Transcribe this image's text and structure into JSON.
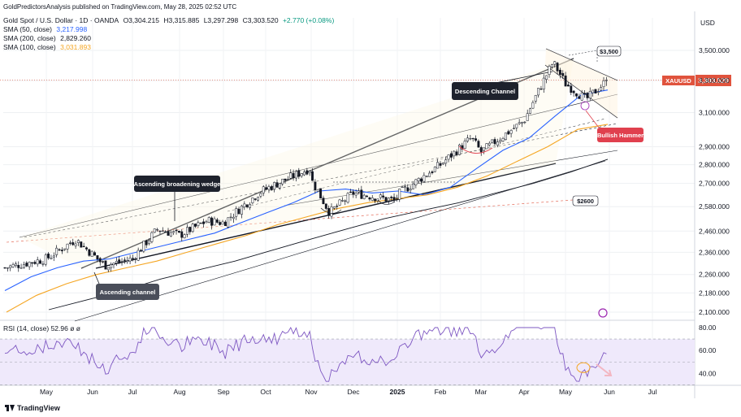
{
  "publisher": "GoldPredictorsAnalysis published on TradingView.com, May 28, 2025 02:52 UTC",
  "symbol": {
    "name": "Gold Spot / U.S. Dollar · 1D · OANDA",
    "open": "O3,304.215",
    "high": "H3,315.885",
    "low": "L3,297.298",
    "close": "C3,303.520",
    "change": "+2.770 (+0.08%)"
  },
  "indicators": [
    {
      "label": "SMA (50, close)",
      "value": "3,217.998",
      "color": "#2962ff"
    },
    {
      "label": "SMA (200, close)",
      "value": "2,829.260",
      "color": "#131722"
    },
    {
      "label": "SMA (100, close)",
      "value": "3,031.893",
      "color": "#f5a623"
    }
  ],
  "currency": "USD",
  "price_tag": {
    "symbol": "XAUUSD",
    "value": "3,303.520",
    "color": "#e0533d"
  },
  "rsi_label": "RSI (14, close) 52.96 ø ø",
  "annotations": {
    "descending_channel": "Descending Channel",
    "ascending_broadening_wedge": "Ascending broadening wedge",
    "ascending_channel": "Ascending channel",
    "bullish_hammer": "Bullish Hammer",
    "level_3500": "$3,500",
    "level_2600": "$2600"
  },
  "watermark": "TradingView",
  "chart_data": [
    {
      "type": "candlestick",
      "title": "Gold Spot / U.S. Dollar · 1D · OANDA",
      "x_labels": [
        "May",
        "Jun",
        "Jul",
        "Aug",
        "Sep",
        "Oct",
        "Nov",
        "Dec",
        "2025",
        "Feb",
        "Mar",
        "Apr",
        "May",
        "Jun",
        "Jul"
      ],
      "y_ticks": [
        3500,
        3300,
        3100,
        2900,
        2800,
        2700,
        2580,
        2460,
        2360,
        2260,
        2180,
        2100
      ],
      "y_tick_labels": [
        "3,500.000",
        "3,300.000",
        "3,100.000",
        "2,900.000",
        "2,800.000",
        "2,700.000",
        "2,580.000",
        "2,460.000",
        "2,360.000",
        "2,260.000",
        "2,180.000",
        "2,100.000"
      ],
      "ylim": [
        2080,
        3580
      ],
      "scale": "log",
      "last_price": 3303.52,
      "price_path": {
        "months": [
          "2024-04",
          "2024-05",
          "2024-05-20",
          "2024-06",
          "2024-06-10",
          "2024-07",
          "2024-07-17",
          "2024-08",
          "2024-08-20",
          "2024-09",
          "2024-09-26",
          "2024-10",
          "2024-10-30",
          "2024-11",
          "2024-11-14",
          "2024-12",
          "2024-12-30",
          "2025-01",
          "2025-02",
          "2025-02-24",
          "2025-03",
          "2025-04",
          "2025-04-22",
          "2025-05",
          "2025-05-15",
          "2025-05-27"
        ],
        "close": [
          2290,
          2330,
          2420,
          2350,
          2300,
          2330,
          2470,
          2440,
          2510,
          2500,
          2650,
          2670,
          2780,
          2720,
          2550,
          2650,
          2610,
          2640,
          2800,
          2950,
          2870,
          3050,
          3420,
          3280,
          3180,
          3303
        ]
      },
      "series": [
        {
          "name": "SMA (50, close)",
          "color": "#2962ff",
          "values": [
            2190,
            2250,
            2290,
            2320,
            2330,
            2360,
            2390,
            2420,
            2450,
            2500,
            2550,
            2600,
            2660,
            2670,
            2650,
            2660,
            2640,
            2680,
            2780,
            2880,
            2950,
            3080,
            3210,
            3240
          ]
        },
        {
          "name": "SMA (100, close)",
          "color": "#f5a623",
          "values": [
            2100,
            2170,
            2220,
            2260,
            2290,
            2320,
            2360,
            2400,
            2440,
            2490,
            2530,
            2570,
            2600,
            2620,
            2640,
            2680,
            2740,
            2820,
            2900,
            3000,
            3030
          ]
        },
        {
          "name": "SMA (200, close)",
          "color": "#131722",
          "values": [
            2110,
            2150,
            2190,
            2240,
            2280,
            2320,
            2370,
            2420,
            2470,
            2520,
            2560,
            2600,
            2650,
            2700,
            2760,
            2830
          ]
        }
      ]
    },
    {
      "type": "line",
      "title": "RSI (14, close) 52.96 ø ø",
      "y_ticks": [
        80,
        60,
        40
      ],
      "y_tick_labels": [
        "80.00",
        "60.00",
        "40.00"
      ],
      "ylim": [
        31,
        85
      ],
      "bands": {
        "upper": 70,
        "middle": 50,
        "lower": 30
      },
      "last": 52.96
    }
  ]
}
